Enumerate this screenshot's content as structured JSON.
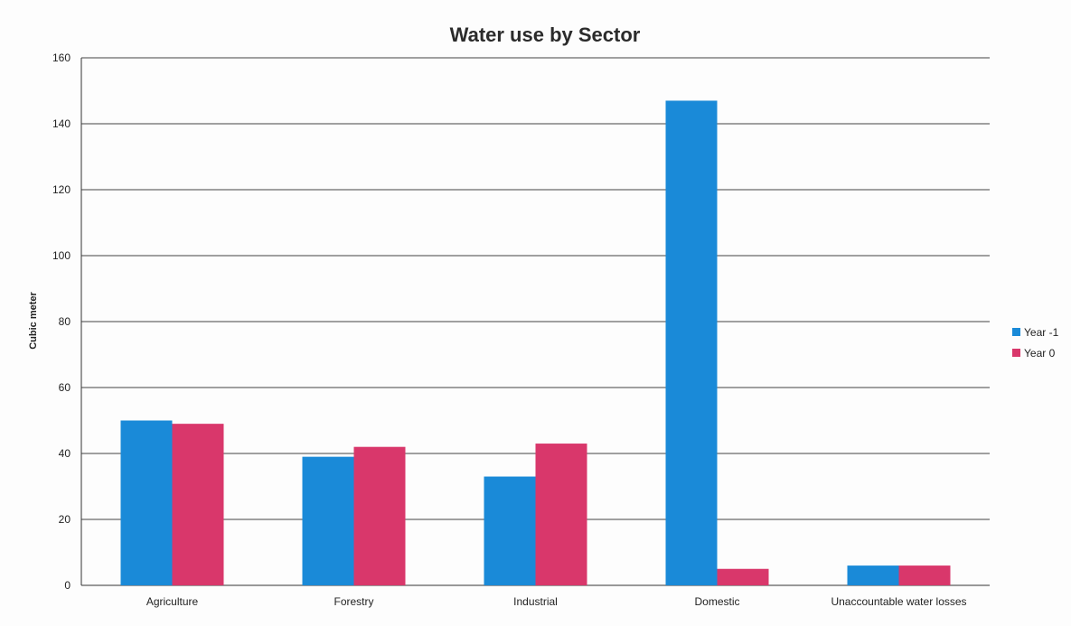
{
  "chart_data": {
    "type": "bar",
    "title": "Water use by Sector",
    "xlabel": "",
    "ylabel": "Cubic meter",
    "ylim": [
      0,
      160
    ],
    "yticks": [
      0,
      20,
      40,
      60,
      80,
      100,
      120,
      140,
      160
    ],
    "grid": true,
    "legend_position": "right",
    "categories": [
      "Agriculture",
      "Forestry",
      "Industrial",
      "Domestic",
      "Unaccountable water losses"
    ],
    "series": [
      {
        "name": "Year -1",
        "color": "#1a8ad8",
        "values": [
          50,
          39,
          33,
          147,
          6
        ]
      },
      {
        "name": "Year 0",
        "color": "#d9376b",
        "values": [
          49,
          42,
          43,
          5,
          6
        ]
      }
    ]
  }
}
